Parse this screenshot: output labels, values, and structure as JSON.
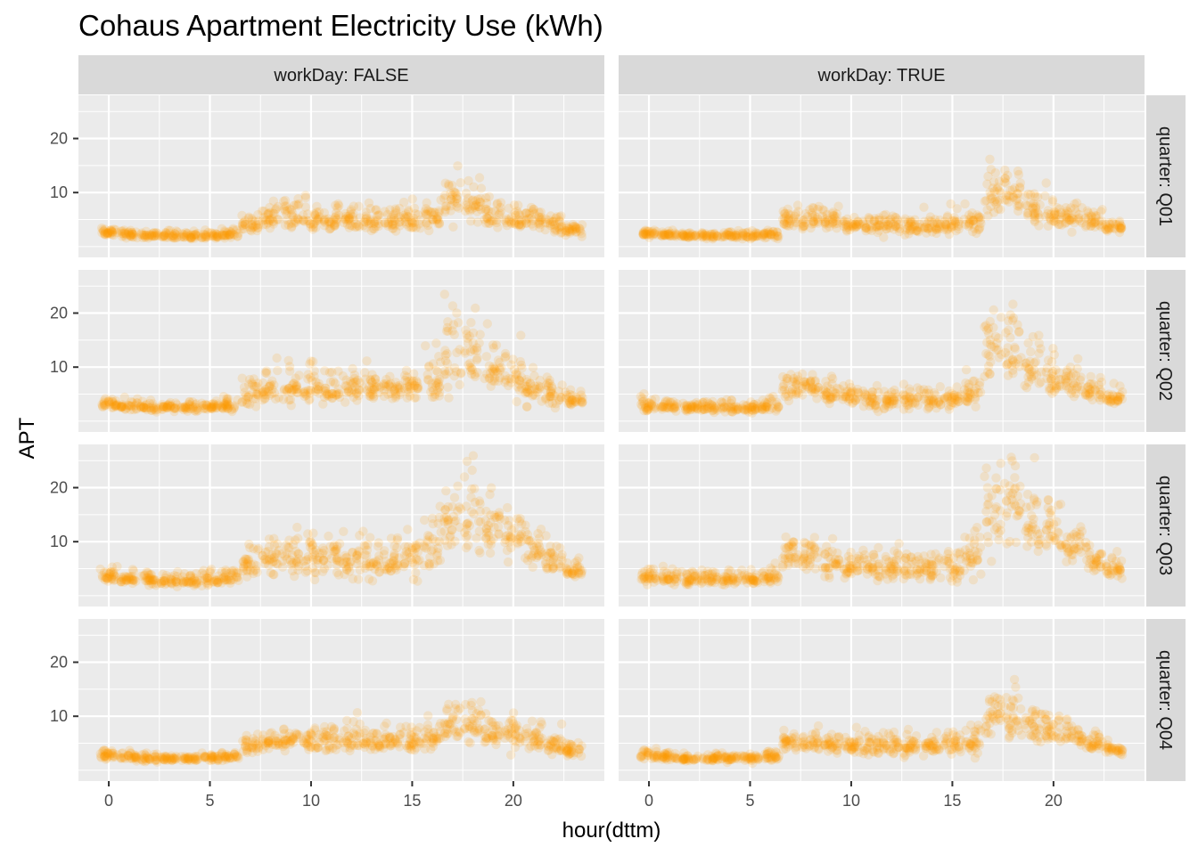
{
  "chart_data": {
    "type": "scatter",
    "title": "Cohaus Apartment Electricity Use (kWh)",
    "xlabel": "hour(dttm)",
    "ylabel": "APT",
    "xlim": [
      -1.5,
      24.5
    ],
    "ylim": [
      -2,
      28
    ],
    "x_ticks": [
      0,
      5,
      10,
      15,
      20
    ],
    "y_ticks": [
      10,
      20
    ],
    "point_color": "#FF9800",
    "point_alpha": 0.15,
    "panel_background": "#EBEBEB",
    "strip_background": "#D9D9D9",
    "grid": true,
    "facet_cols": {
      "variable": "workDay",
      "labels": [
        "workDay: FALSE",
        "workDay: TRUE"
      ]
    },
    "facet_rows": {
      "variable": "quarter",
      "labels": [
        "quarter: Q01",
        "quarter: Q02",
        "quarter: Q03",
        "quarter: Q04"
      ]
    },
    "hours": [
      0,
      1,
      2,
      3,
      4,
      5,
      6,
      7,
      8,
      9,
      10,
      11,
      12,
      13,
      14,
      15,
      16,
      17,
      18,
      19,
      20,
      21,
      22,
      23
    ],
    "panels": [
      {
        "row": 0,
        "col": 0,
        "median": [
          2.6,
          2.3,
          2.1,
          2.0,
          2.0,
          2.0,
          2.3,
          3.8,
          5.2,
          5.5,
          5.2,
          5.0,
          5.0,
          4.8,
          4.6,
          4.8,
          5.2,
          8.0,
          7.8,
          5.5,
          5.2,
          5.0,
          4.0,
          3.0
        ],
        "spread": [
          0.5,
          0.5,
          0.4,
          0.4,
          0.4,
          0.4,
          0.5,
          1.0,
          1.5,
          1.6,
          1.6,
          1.6,
          1.6,
          1.6,
          1.6,
          1.6,
          1.8,
          2.6,
          2.6,
          1.8,
          1.6,
          1.5,
          1.2,
          0.7
        ]
      },
      {
        "row": 0,
        "col": 1,
        "median": [
          2.5,
          2.2,
          2.0,
          2.0,
          2.0,
          2.0,
          2.2,
          5.0,
          5.2,
          4.6,
          4.2,
          4.0,
          3.9,
          3.7,
          3.7,
          3.9,
          4.4,
          9.5,
          9.5,
          6.5,
          6.0,
          5.5,
          4.5,
          3.5
        ],
        "spread": [
          0.5,
          0.4,
          0.4,
          0.4,
          0.4,
          0.4,
          0.5,
          1.2,
          1.4,
          1.2,
          1.1,
          1.1,
          1.1,
          1.1,
          1.1,
          1.2,
          1.4,
          2.6,
          2.6,
          2.0,
          1.7,
          1.5,
          1.2,
          0.8
        ]
      },
      {
        "row": 1,
        "col": 0,
        "median": [
          3.0,
          2.8,
          2.6,
          2.6,
          2.6,
          2.6,
          3.0,
          5.0,
          6.0,
          6.2,
          6.0,
          6.0,
          6.0,
          6.0,
          6.0,
          6.2,
          7.0,
          11.0,
          11.0,
          9.5,
          8.0,
          6.5,
          5.0,
          3.8
        ],
        "spread": [
          0.7,
          0.6,
          0.6,
          0.6,
          0.6,
          0.6,
          0.8,
          1.6,
          2.0,
          2.0,
          2.0,
          2.0,
          2.0,
          2.0,
          2.0,
          2.2,
          2.8,
          4.2,
          4.2,
          3.5,
          3.0,
          2.2,
          1.6,
          0.8
        ]
      },
      {
        "row": 1,
        "col": 1,
        "median": [
          2.8,
          2.6,
          2.5,
          2.4,
          2.4,
          2.4,
          2.8,
          6.0,
          6.2,
          5.0,
          4.6,
          4.2,
          4.0,
          4.0,
          4.0,
          4.2,
          5.5,
          12.5,
          12.5,
          9.0,
          8.0,
          7.0,
          5.5,
          4.2
        ],
        "spread": [
          0.8,
          0.6,
          0.6,
          0.6,
          0.6,
          0.6,
          0.8,
          1.6,
          1.8,
          1.4,
          1.3,
          1.3,
          1.3,
          1.3,
          1.3,
          1.4,
          2.0,
          4.2,
          4.2,
          3.0,
          2.6,
          2.0,
          1.5,
          1.0
        ]
      },
      {
        "row": 2,
        "col": 0,
        "median": [
          3.6,
          3.2,
          3.0,
          2.8,
          2.8,
          2.8,
          3.4,
          5.5,
          7.0,
          7.0,
          6.8,
          6.6,
          6.4,
          6.4,
          6.4,
          7.0,
          8.5,
          14.0,
          14.5,
          13.0,
          11.0,
          8.5,
          6.5,
          4.5
        ],
        "spread": [
          0.9,
          0.8,
          0.8,
          0.7,
          0.7,
          0.7,
          0.9,
          1.8,
          2.2,
          2.2,
          2.2,
          2.2,
          2.2,
          2.2,
          2.3,
          2.6,
          3.6,
          4.5,
          4.5,
          4.0,
          3.5,
          2.5,
          1.8,
          1.0
        ]
      },
      {
        "row": 2,
        "col": 1,
        "median": [
          3.4,
          3.2,
          3.0,
          3.0,
          3.0,
          3.0,
          3.4,
          7.0,
          7.2,
          6.0,
          5.5,
          5.2,
          5.0,
          5.0,
          5.0,
          5.2,
          7.0,
          15.0,
          16.0,
          13.0,
          11.0,
          9.5,
          7.0,
          5.0
        ],
        "spread": [
          0.9,
          0.8,
          0.8,
          0.8,
          0.8,
          0.8,
          0.9,
          1.8,
          2.0,
          1.7,
          1.6,
          1.6,
          1.6,
          1.6,
          1.6,
          1.8,
          2.8,
          4.8,
          4.8,
          4.0,
          3.4,
          2.6,
          2.0,
          1.2
        ]
      },
      {
        "row": 3,
        "col": 0,
        "median": [
          2.8,
          2.5,
          2.3,
          2.2,
          2.2,
          2.2,
          2.5,
          4.5,
          5.5,
          5.5,
          5.4,
          5.4,
          5.3,
          5.2,
          5.2,
          5.4,
          6.0,
          8.0,
          8.2,
          7.0,
          6.5,
          5.8,
          4.6,
          3.5
        ],
        "spread": [
          0.6,
          0.5,
          0.5,
          0.4,
          0.4,
          0.4,
          0.6,
          1.2,
          1.4,
          1.4,
          1.4,
          1.4,
          1.4,
          1.4,
          1.4,
          1.5,
          2.0,
          2.6,
          2.6,
          2.0,
          1.8,
          1.5,
          1.2,
          0.8
        ]
      },
      {
        "row": 3,
        "col": 1,
        "median": [
          2.7,
          2.4,
          2.2,
          2.2,
          2.2,
          2.2,
          2.4,
          5.0,
          5.2,
          4.8,
          4.6,
          4.4,
          4.3,
          4.3,
          4.3,
          4.5,
          5.0,
          10.0,
          10.0,
          7.8,
          7.2,
          6.2,
          5.0,
          3.8
        ],
        "spread": [
          0.6,
          0.5,
          0.4,
          0.4,
          0.4,
          0.4,
          0.6,
          1.2,
          1.3,
          1.2,
          1.2,
          1.2,
          1.2,
          1.2,
          1.2,
          1.3,
          1.6,
          2.8,
          2.8,
          2.0,
          1.8,
          1.5,
          1.2,
          0.8
        ]
      }
    ]
  }
}
